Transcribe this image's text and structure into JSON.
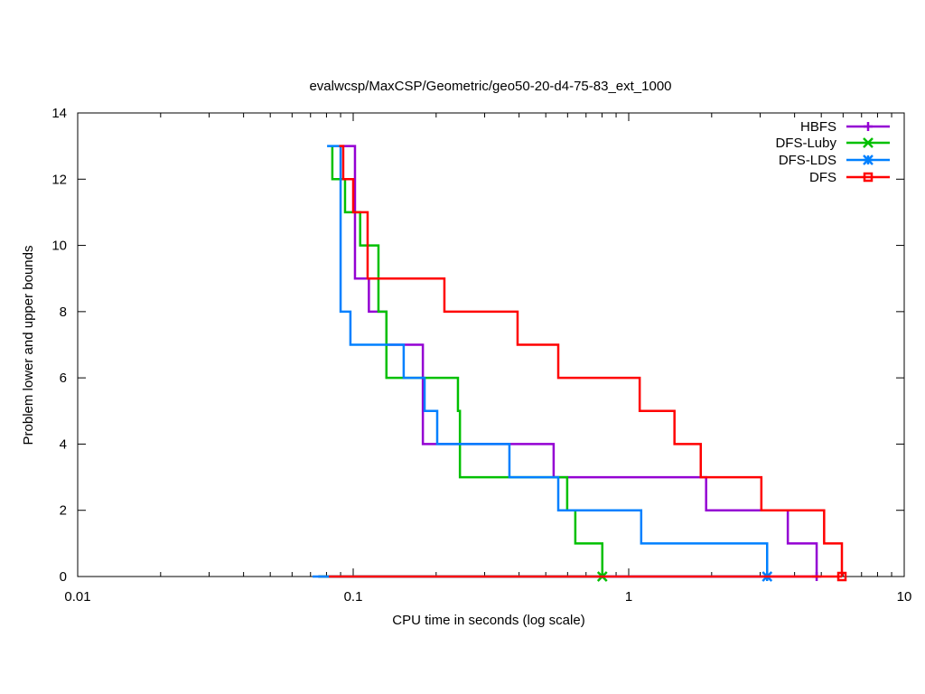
{
  "chart_data": {
    "type": "line",
    "title": "evalwcsp/MaxCSP/Geometric/geo50-20-d4-75-83_ext_1000",
    "xlabel": "CPU time in seconds (log scale)",
    "ylabel": "Problem lower and upper bounds",
    "xscale": "log",
    "xlim": [
      0.01,
      10
    ],
    "ylim": [
      0,
      14
    ],
    "xticks": [
      0.01,
      0.1,
      1,
      10
    ],
    "xtick_labels": [
      "0.01",
      "0.1",
      "1",
      "10"
    ],
    "yticks": [
      0,
      2,
      4,
      6,
      8,
      10,
      12,
      14
    ],
    "ytick_labels": [
      "0",
      "2",
      "4",
      "6",
      "8",
      "10",
      "12",
      "14"
    ],
    "grid": false,
    "legend_position": "top-right",
    "series": [
      {
        "name": "HBFS",
        "color": "#9400d3",
        "marker": "plus",
        "lower_bound_start": 0.0745,
        "upper_steps": [
          [
            0.091,
            13
          ],
          [
            0.1015,
            9
          ],
          [
            0.114,
            8
          ],
          [
            0.132,
            7
          ],
          [
            0.179,
            4
          ],
          [
            0.534,
            3
          ],
          [
            1.91,
            2
          ],
          [
            3.78,
            1
          ],
          [
            4.81,
            0
          ]
        ]
      },
      {
        "name": "DFS-Luby",
        "color": "#00c000",
        "marker": "cross",
        "lower_bound_start": 0.075,
        "upper_steps": [
          [
            0.084,
            13
          ],
          [
            0.084,
            12
          ],
          [
            0.0934,
            11
          ],
          [
            0.106,
            10
          ],
          [
            0.1235,
            8
          ],
          [
            0.132,
            6
          ],
          [
            0.24,
            5
          ],
          [
            0.244,
            3
          ],
          [
            0.598,
            2
          ],
          [
            0.64,
            1
          ],
          [
            0.802,
            0
          ]
        ]
      },
      {
        "name": "DFS-LDS",
        "color": "#0080ff",
        "marker": "star",
        "lower_bound_start": 0.0712,
        "upper_steps": [
          [
            0.0804,
            13
          ],
          [
            0.09,
            8
          ],
          [
            0.0977,
            7
          ],
          [
            0.1525,
            6
          ],
          [
            0.1816,
            5
          ],
          [
            0.2018,
            4
          ],
          [
            0.369,
            3
          ],
          [
            0.555,
            2
          ],
          [
            1.11,
            1
          ],
          [
            3.18,
            0
          ]
        ]
      },
      {
        "name": "DFS",
        "color": "#ff0000",
        "marker": "square",
        "lower_bound_start": 0.0816,
        "upper_steps": [
          [
            0.089,
            13
          ],
          [
            0.092,
            12
          ],
          [
            0.1,
            11
          ],
          [
            0.1128,
            9
          ],
          [
            0.2143,
            8
          ],
          [
            0.395,
            7
          ],
          [
            0.555,
            6
          ],
          [
            1.096,
            5
          ],
          [
            1.466,
            4
          ],
          [
            1.826,
            3
          ],
          [
            3.03,
            2
          ],
          [
            5.12,
            1
          ],
          [
            5.94,
            0
          ]
        ]
      }
    ]
  }
}
